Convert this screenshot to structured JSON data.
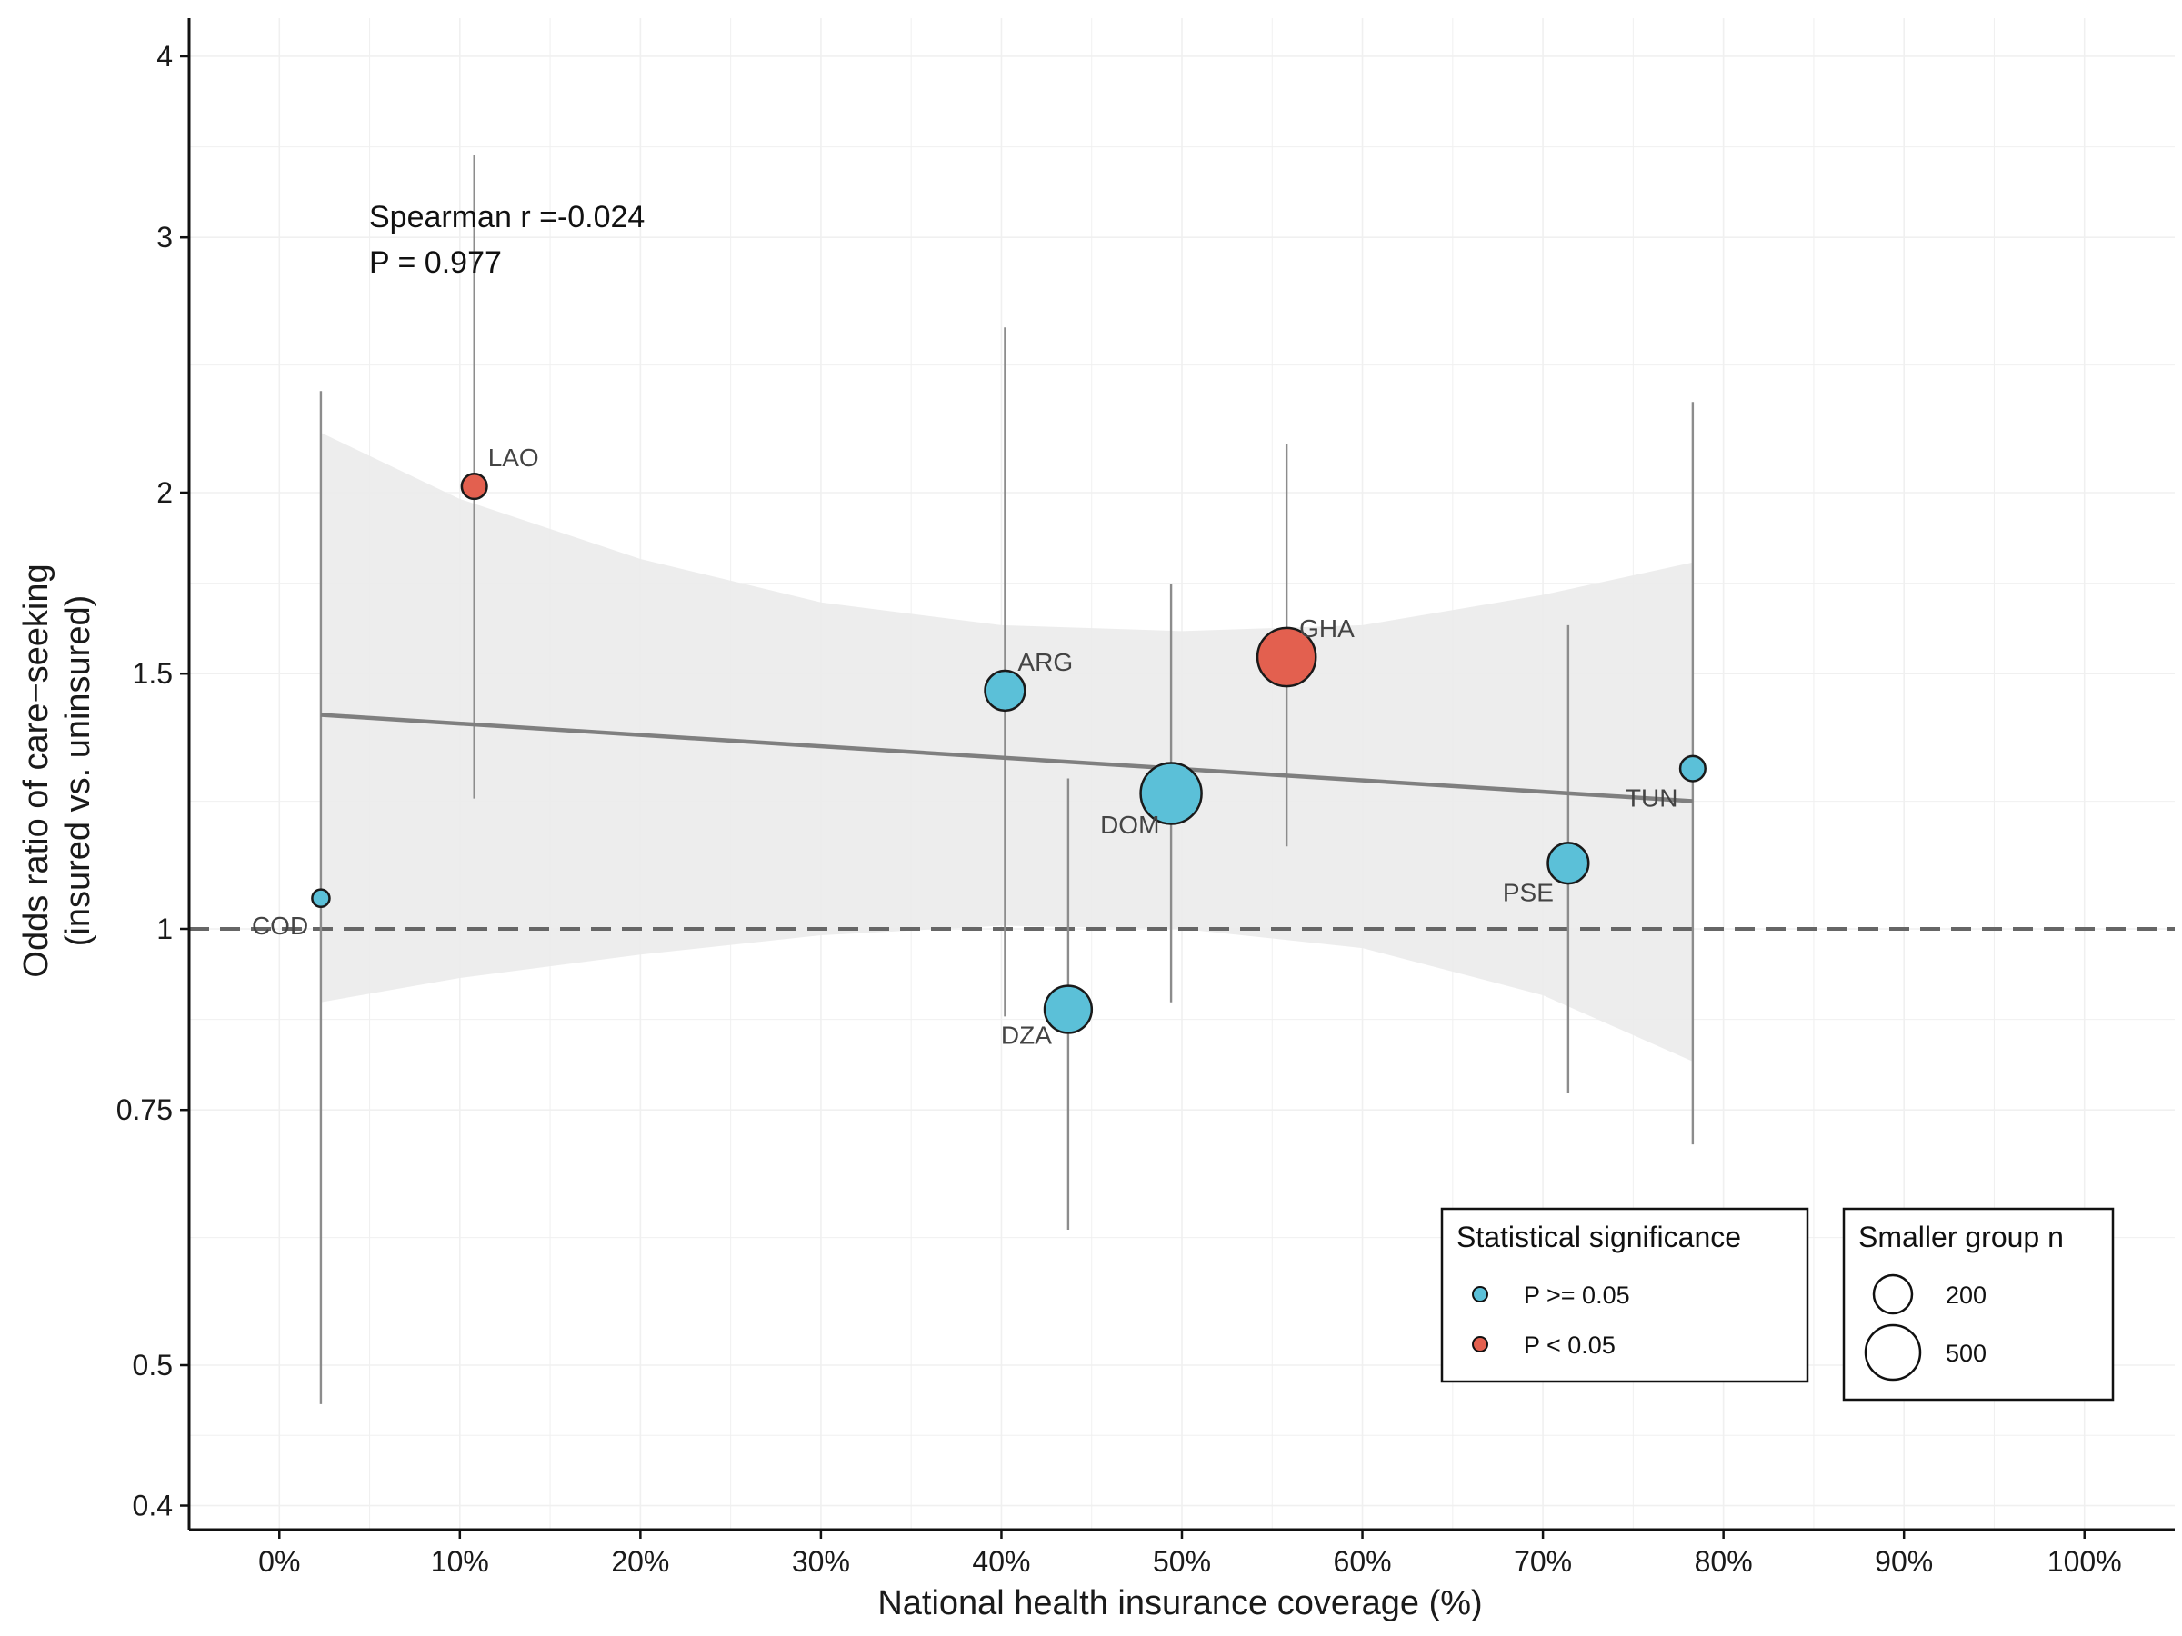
{
  "chart_data": {
    "type": "scatter",
    "xlabel": "National health insurance coverage (%)",
    "ylabel_line1": "Odds ratio of care−seeking",
    "ylabel_line2": "(insured vs. uninsured)",
    "x_axis": {
      "range": [
        -5,
        105
      ],
      "ticks": [
        0,
        10,
        20,
        30,
        40,
        50,
        60,
        70,
        80,
        90,
        100
      ],
      "tick_labels": [
        "0%",
        "10%",
        "20%",
        "30%",
        "40%",
        "50%",
        "60%",
        "70%",
        "80%",
        "90%",
        "100%"
      ]
    },
    "y_axis": {
      "scale": "log",
      "range": [
        0.385,
        4.25
      ],
      "ticks": [
        0.4,
        0.5,
        0.75,
        1,
        1.5,
        2,
        3,
        4
      ],
      "tick_labels": [
        "0.4",
        "0.5",
        "0.75",
        "1",
        "1.5",
        "2",
        "3",
        "4"
      ]
    },
    "reference_line": 1,
    "points": [
      {
        "label": "COD",
        "x": 2.3,
        "y": 1.05,
        "lo": 0.47,
        "hi": 2.35,
        "n": 40,
        "significant": false
      },
      {
        "label": "LAO",
        "x": 10.8,
        "y": 2.02,
        "lo": 1.23,
        "hi": 3.42,
        "n": 90,
        "significant": true
      },
      {
        "label": "ARG",
        "x": 40.2,
        "y": 1.46,
        "lo": 0.87,
        "hi": 2.6,
        "n": 240,
        "significant": false
      },
      {
        "label": "DZA",
        "x": 43.7,
        "y": 0.88,
        "lo": 0.62,
        "hi": 1.27,
        "n": 340,
        "significant": false
      },
      {
        "label": "DOM",
        "x": 49.4,
        "y": 1.24,
        "lo": 0.89,
        "hi": 1.73,
        "n": 580,
        "significant": false
      },
      {
        "label": "GHA",
        "x": 55.8,
        "y": 1.54,
        "lo": 1.14,
        "hi": 2.16,
        "n": 530,
        "significant": true
      },
      {
        "label": "PSE",
        "x": 71.4,
        "y": 1.11,
        "lo": 0.77,
        "hi": 1.62,
        "n": 250,
        "significant": false
      },
      {
        "label": "TUN",
        "x": 78.3,
        "y": 1.29,
        "lo": 0.71,
        "hi": 2.31,
        "n": 90,
        "significant": false
      }
    ],
    "fit_line": {
      "x": [
        2.3,
        78.3
      ],
      "y": [
        1.405,
        1.225
      ]
    },
    "confidence_band": {
      "x": [
        2.3,
        10,
        20,
        30,
        40,
        50,
        60,
        70,
        78.3
      ],
      "upper": [
        2.2,
        1.98,
        1.8,
        1.68,
        1.62,
        1.605,
        1.62,
        1.7,
        1.79
      ],
      "lower": [
        0.89,
        0.925,
        0.96,
        0.99,
        1.005,
        1.0,
        0.97,
        0.9,
        0.81
      ]
    },
    "annotation": {
      "line1": "Spearman r =-0.024",
      "line2": "P = 0.977"
    },
    "legend_significance": {
      "title": "Statistical significance",
      "items": [
        {
          "label": "P >= 0.05",
          "color": "#5bc0d8"
        },
        {
          "label": "P < 0.05",
          "color": "#e3604f"
        }
      ]
    },
    "legend_size": {
      "title": "Smaller group n",
      "items": [
        {
          "label": "200",
          "n": 200
        },
        {
          "label": "500",
          "n": 500
        }
      ]
    },
    "colors": {
      "not_significant": "#5bc0d8",
      "significant": "#e3604f",
      "fit_line": "#7f7f7f",
      "band": "#ebebeb",
      "error_bar": "#8c8c8c",
      "reference_line": "#666666",
      "grid": "#f0f0f0"
    }
  }
}
